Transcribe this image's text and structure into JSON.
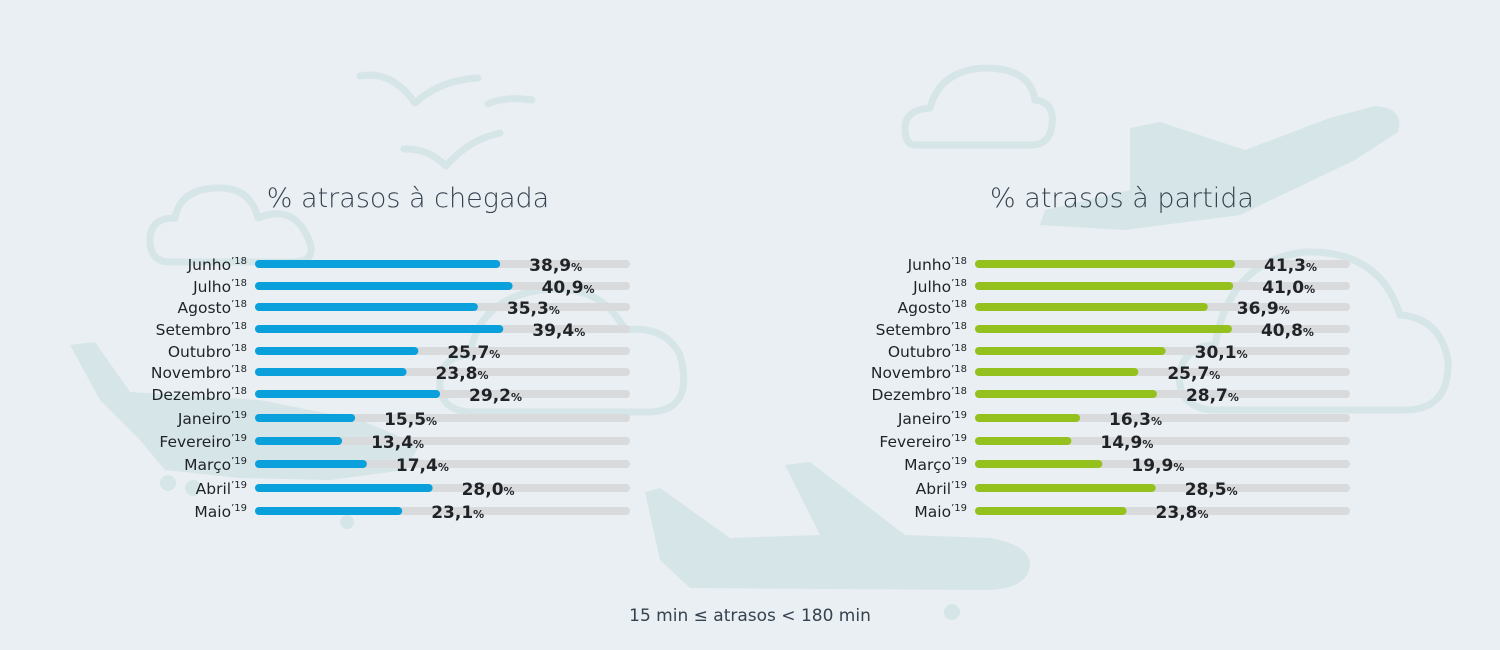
{
  "colors": {
    "arrival": "#0aa0dc",
    "departure": "#95c11f",
    "track": "#d9dadb",
    "text": "#1f2328",
    "background": "#eaeff3"
  },
  "footnote": "15 min ≤ atrasos < 180 min",
  "chart_data": [
    {
      "type": "bar",
      "orientation": "horizontal",
      "title": "% atrasos à chegada",
      "categories": [
        "Junho",
        "Julho",
        "Agosto",
        "Setembro",
        "Outubro",
        "Novembro",
        "Dezembro",
        "Janeiro",
        "Fevereiro",
        "Março",
        "Abril",
        "Maio"
      ],
      "years": [
        "’18",
        "’18",
        "’18",
        "’18",
        "’18",
        "’18",
        "’18",
        "’19",
        "’19",
        "’19",
        "’19",
        "’19"
      ],
      "values": [
        38.9,
        40.9,
        35.3,
        39.4,
        25.7,
        23.8,
        29.2,
        15.5,
        13.4,
        17.4,
        28.0,
        23.1
      ],
      "labels": [
        "38,9",
        "40,9",
        "35,3",
        "39,4",
        "25,7",
        "23,8",
        "29,2",
        "15,5",
        "13,4",
        "17,4",
        "28,0",
        "23,1"
      ],
      "unit": "%",
      "xlim": [
        0,
        100
      ],
      "grid": false
    },
    {
      "type": "bar",
      "orientation": "horizontal",
      "title": "% atrasos à partida",
      "categories": [
        "Junho",
        "Julho",
        "Agosto",
        "Setembro",
        "Outubro",
        "Novembro",
        "Dezembro",
        "Janeiro",
        "Fevereiro",
        "Março",
        "Abril",
        "Maio"
      ],
      "years": [
        "’18",
        "’18",
        "’18",
        "’18",
        "’18",
        "’18",
        "’18",
        "’19",
        "’19",
        "’19",
        "’19",
        "’19"
      ],
      "values": [
        41.3,
        41.0,
        36.9,
        40.8,
        30.1,
        25.7,
        28.7,
        16.3,
        14.9,
        19.9,
        28.5,
        23.8
      ],
      "labels": [
        "41,3",
        "41,0",
        "36,9",
        "40,8",
        "30,1",
        "25,7",
        "28,7",
        "16,3",
        "14,9",
        "19,9",
        "28,5",
        "23,8"
      ],
      "unit": "%",
      "xlim": [
        0,
        100
      ],
      "grid": false
    }
  ]
}
